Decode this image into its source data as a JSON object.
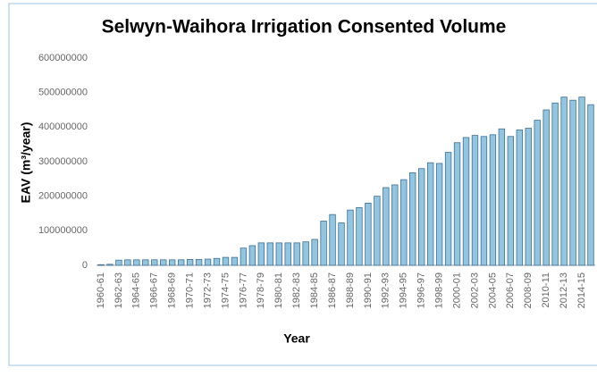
{
  "chart_data": {
    "type": "bar",
    "title": "Selwyn-Waihora Irrigation Consented Volume",
    "x_label": "Year",
    "y_label": "EAV (m³/year)",
    "categories": [
      "1960-61",
      null,
      "1962-63",
      null,
      "1964-65",
      null,
      "1966-67",
      null,
      "1968-69",
      null,
      "1970-71",
      null,
      "1972-73",
      null,
      "1974-75",
      null,
      "1976-77",
      null,
      "1978-79",
      null,
      "1980-81",
      null,
      "1982-83",
      null,
      "1984-85",
      null,
      "1986-87",
      null,
      "1988-89",
      null,
      "1990-91",
      null,
      "1992-93",
      null,
      "1994-95",
      null,
      "1996-97",
      null,
      "1998-99",
      null,
      "2000-01",
      null,
      "2002-03",
      null,
      "2004-05",
      null,
      "2006-07",
      null,
      "2008-09",
      null,
      "2010-11",
      null,
      "2012-13",
      null,
      "2014-15",
      null
    ],
    "values": [
      2000000,
      3000000,
      15000000,
      16000000,
      16000000,
      16000000,
      16000000,
      16000000,
      16000000,
      16000000,
      17000000,
      17000000,
      18000000,
      20000000,
      23000000,
      23000000,
      50000000,
      57000000,
      65000000,
      65000000,
      65000000,
      65000000,
      65000000,
      68000000,
      75000000,
      128000000,
      147000000,
      123000000,
      160000000,
      167000000,
      180000000,
      200000000,
      225000000,
      233000000,
      248000000,
      268000000,
      280000000,
      297000000,
      295000000,
      327000000,
      355000000,
      370000000,
      376000000,
      373000000,
      378000000,
      395000000,
      373000000,
      392000000,
      397000000,
      420000000,
      450000000,
      470000000,
      487000000,
      478000000,
      487000000,
      465000000
    ],
    "color": "#92c5e0",
    "ylim": [
      0,
      600000000
    ],
    "yticks": [
      0,
      100000000,
      200000000,
      300000000,
      400000000,
      500000000,
      600000000
    ],
    "grid": false
  }
}
